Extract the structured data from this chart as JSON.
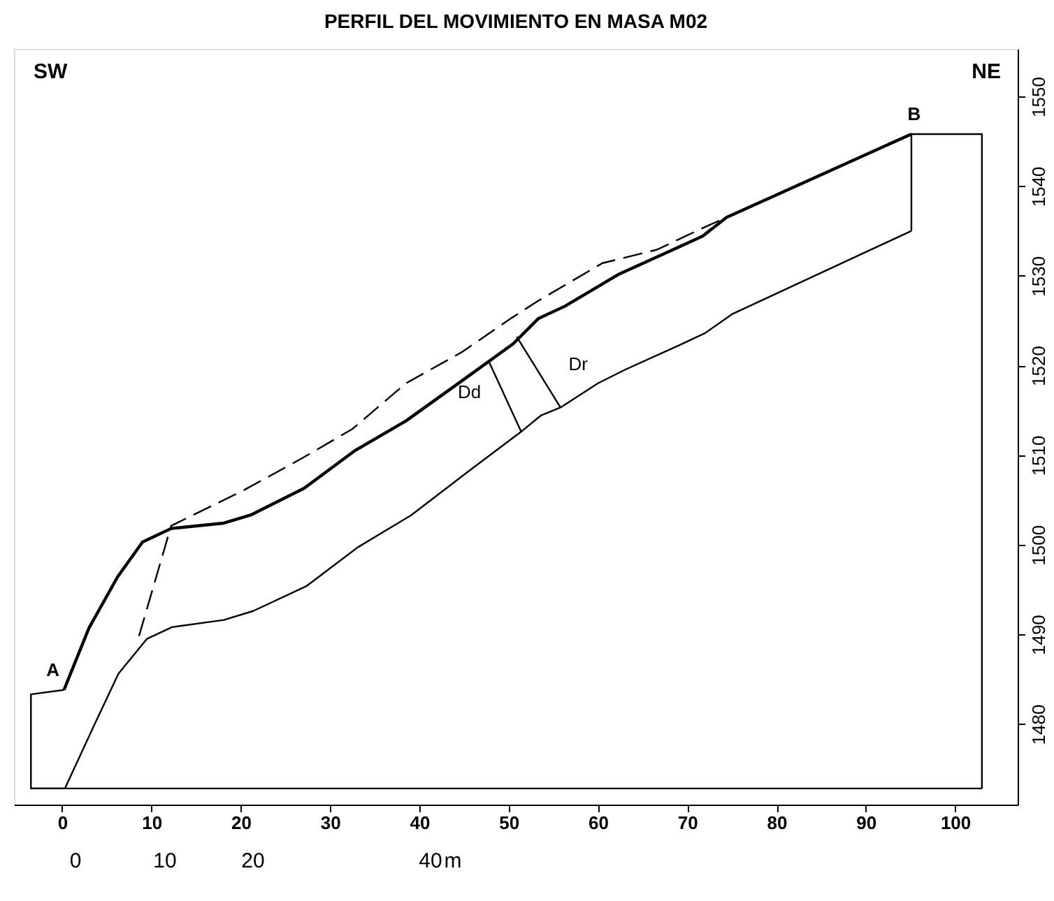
{
  "chart_data": {
    "type": "line",
    "title": "PERFIL DEL MOVIMIENTO EN MASA M02",
    "xlim": [
      -5.4,
      107
    ],
    "ylim": [
      1471,
      1555.3
    ],
    "xticks": [
      0,
      10,
      20,
      30,
      40,
      50,
      60,
      70,
      80,
      90,
      100
    ],
    "yticks": [
      1480,
      1490,
      1500,
      1510,
      1520,
      1530,
      1540,
      1550
    ],
    "grid": false,
    "marker": "none",
    "series": [
      {
        "color": "#000000",
        "line_style": "solid",
        "x": [
          0.2,
          3.0,
          6.2,
          9.0,
          12.2,
          18.1,
          21.1,
          24.1,
          27.1,
          32.8,
          38.5,
          44.8,
          50.5,
          53.3,
          56.3,
          62.4,
          68.4,
          71.7,
          74.4,
          95.1
        ],
        "values": [
          1483.8,
          1490.7,
          1496.4,
          1500.3,
          1501.8,
          1502.4,
          1503.3,
          1504.8,
          1506.3,
          1510.5,
          1513.8,
          1518.3,
          1522.4,
          1525.2,
          1526.6,
          1530.2,
          1532.9,
          1534.4,
          1536.5,
          1545.8
        ]
      },
      {
        "color": "#000000",
        "line_style": "dashed",
        "x": [
          8.6,
          12.2,
          20.2,
          26.8,
          32.5,
          38.5,
          44.8,
          50.2,
          53.3,
          60.5,
          66.6,
          71.7,
          74.4
        ],
        "values": [
          1489.8,
          1502.1,
          1506.0,
          1509.6,
          1512.9,
          1518.0,
          1521.5,
          1525.2,
          1527.2,
          1531.4,
          1532.9,
          1535.3,
          1536.5
        ]
      },
      {
        "color": "#000000",
        "line_style": "solid",
        "x": [
          0.3,
          3.6,
          6.3,
          9.5,
          12.3,
          18.1,
          21.4,
          27.4,
          33.1,
          39.1,
          45.4,
          51.4,
          53.6,
          55.8,
          60.0,
          63.0,
          69.0,
          72.0,
          75.0,
          95.1
        ],
        "values": [
          1472.8,
          1479.9,
          1485.6,
          1489.5,
          1490.8,
          1491.6,
          1492.6,
          1495.4,
          1499.7,
          1503.3,
          1508.1,
          1512.6,
          1514.4,
          1515.3,
          1518.0,
          1519.5,
          1522.2,
          1523.6,
          1525.7,
          1535.0
        ]
      },
      {
        "color": "#000000",
        "line_style": "solid",
        "x": [
          0.3,
          -3.5,
          -3.5,
          0.2
        ],
        "values": [
          1472.8,
          1472.8,
          1483.3,
          1483.8
        ]
      },
      {
        "color": "#000000",
        "line_style": "solid",
        "x": [
          -3.5,
          103
        ],
        "values": [
          1472.8,
          1472.8
        ]
      },
      {
        "color": "#000000",
        "line_style": "solid",
        "x": [
          95.1,
          95.1,
          103,
          103
        ],
        "values": [
          1535.0,
          1545.8,
          1545.8,
          1472.8
        ]
      },
      {
        "color": "#000000",
        "line_style": "solid",
        "x": [
          47.8,
          51.4
        ],
        "values": [
          1520.4,
          1512.6
        ]
      },
      {
        "color": "#000000",
        "line_style": "solid",
        "x": [
          50.9,
          55.8
        ],
        "values": [
          1523.2,
          1515.3
        ]
      }
    ],
    "annotations": [
      {
        "text": "A",
        "x": 0.2,
        "y": 1483.8
      },
      {
        "text": "B",
        "x": 95.1,
        "y": 1545.8
      },
      {
        "text": "Dd",
        "x": 47.8,
        "y": 1520.4
      },
      {
        "text": "Dr",
        "x": 50.9,
        "y": 1523.2
      },
      "SW",
      "NE",
      "0",
      "10",
      "20",
      "40",
      "m"
    ]
  }
}
